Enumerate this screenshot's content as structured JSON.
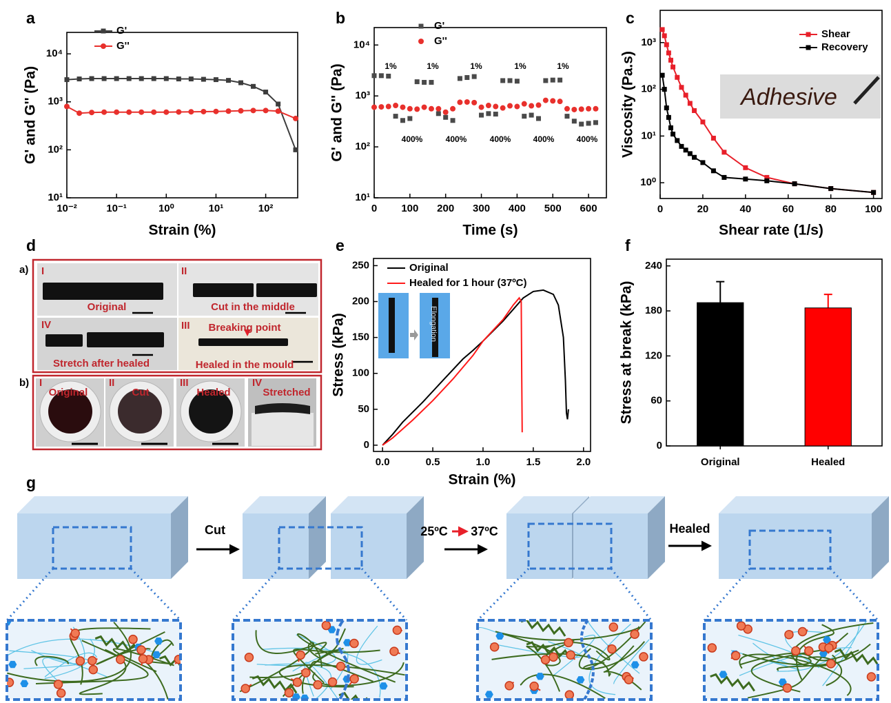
{
  "chart_data": [
    {
      "type": "line",
      "label": "a",
      "xlabel": "Strain (%)",
      "ylabel": "G' and G'' (Pa)",
      "xscale": "log",
      "yscale": "log",
      "xlim": [
        0.01,
        440
      ],
      "ylim": [
        10,
        28000
      ],
      "xticks": [
        {
          "value": 0.01,
          "label": "10⁻²"
        },
        {
          "value": 0.1,
          "label": "10⁻¹"
        },
        {
          "value": 1,
          "label": "10⁰"
        },
        {
          "value": 10,
          "label": "10¹"
        },
        {
          "value": 100,
          "label": "10²"
        }
      ],
      "yticks": [
        {
          "value": 10,
          "label": "10¹"
        },
        {
          "value": 100,
          "label": "10²"
        },
        {
          "value": 1000,
          "label": "10³"
        },
        {
          "value": 10000,
          "label": "10⁴"
        }
      ],
      "legend": "upper left",
      "x": [
        0.01,
        0.0178,
        0.0316,
        0.0562,
        0.1,
        0.178,
        0.316,
        0.562,
        1,
        1.78,
        3.16,
        5.62,
        10,
        17.8,
        31.6,
        56.2,
        100,
        178,
        400
      ],
      "series": [
        {
          "name": "G'",
          "color": "#3d3d3d",
          "marker": "square",
          "values": [
            2900,
            3000,
            3050,
            3050,
            3050,
            3050,
            3050,
            3050,
            3050,
            3000,
            3000,
            2950,
            2900,
            2800,
            2500,
            2100,
            1600,
            900,
            100
          ]
        },
        {
          "name": "G''",
          "color": "#e8302c",
          "marker": "circle",
          "values": [
            800,
            580,
            600,
            610,
            610,
            610,
            610,
            610,
            610,
            615,
            620,
            625,
            630,
            640,
            650,
            660,
            660,
            640,
            450
          ]
        }
      ]
    },
    {
      "type": "scatter",
      "label": "b",
      "xlabel": "Time (s)",
      "ylabel": "G' and G'' (Pa)",
      "yscale": "log",
      "xlim": [
        0,
        650
      ],
      "ylim": [
        10,
        22000
      ],
      "xticks": [
        0,
        100,
        200,
        300,
        400,
        500,
        600
      ],
      "yticks": [
        {
          "value": 10,
          "label": "10¹"
        },
        {
          "value": 100,
          "label": "10²"
        },
        {
          "value": 1000,
          "label": "10³"
        },
        {
          "value": 10000,
          "label": "10⁴"
        }
      ],
      "legend": "upper left",
      "annotations": [
        "1%",
        "1%",
        "1%",
        "1%",
        "1%",
        "400%",
        "400%",
        "400%",
        "400%",
        "400%"
      ],
      "x": [
        0,
        20,
        40,
        60,
        80,
        100,
        120,
        140,
        160,
        180,
        200,
        220,
        240,
        260,
        280,
        300,
        320,
        340,
        360,
        380,
        400,
        420,
        440,
        460,
        480,
        500,
        520,
        540,
        560,
        580,
        600,
        620
      ],
      "series": [
        {
          "name": "G'",
          "color": "#4a4a4a",
          "marker": "square",
          "values": [
            2500,
            2500,
            2450,
            400,
            330,
            360,
            1900,
            1850,
            1850,
            450,
            380,
            330,
            2200,
            2300,
            2400,
            420,
            450,
            440,
            2000,
            2000,
            1950,
            400,
            420,
            360,
            2000,
            2050,
            2050,
            400,
            320,
            280,
            290,
            300
          ]
        },
        {
          "name": "G''",
          "color": "#e8302c",
          "marker": "circle",
          "values": [
            600,
            610,
            620,
            650,
            600,
            560,
            550,
            600,
            560,
            560,
            480,
            560,
            750,
            760,
            740,
            600,
            650,
            620,
            580,
            640,
            620,
            700,
            640,
            660,
            820,
            800,
            780,
            560,
            540,
            550,
            560,
            560
          ]
        }
      ]
    },
    {
      "type": "line",
      "label": "c",
      "xlabel": "Shear rate (1/s)",
      "ylabel": "Viscosity (Pa.s)",
      "yscale": "log",
      "xlim": [
        0,
        104
      ],
      "ylim": [
        0.46,
        4900
      ],
      "xticks": [
        0,
        20,
        40,
        60,
        80,
        100
      ],
      "yticks": [
        {
          "value": 1,
          "label": "10⁰"
        },
        {
          "value": 10,
          "label": "10¹"
        },
        {
          "value": 100,
          "label": "10²"
        },
        {
          "value": 1000,
          "label": "10³"
        }
      ],
      "legend": "upper right",
      "inset_text": "Adhesive",
      "x": [
        1,
        2,
        3,
        4,
        5,
        6,
        8,
        10,
        12,
        14,
        16,
        20,
        25,
        30,
        40,
        50,
        63,
        80,
        100
      ],
      "series": [
        {
          "name": "Shear",
          "color": "#e8202a",
          "marker": "square",
          "values": [
            1900,
            1400,
            900,
            600,
            420,
            300,
            180,
            110,
            75,
            50,
            35,
            20,
            9,
            4.5,
            2.1,
            1.3,
            0.95,
            0.75,
            0.62
          ]
        },
        {
          "name": "Recovery",
          "color": "#000000",
          "marker": "square",
          "values": [
            200,
            100,
            40,
            25,
            15,
            11,
            8,
            6,
            5,
            4.2,
            3.5,
            2.7,
            1.8,
            1.3,
            1.2,
            1.1,
            0.95,
            0.75,
            0.62
          ]
        }
      ]
    },
    {
      "type": "line",
      "label": "e",
      "xlabel": "Strain (%)",
      "ylabel": "Stress (kPa)",
      "xlim": [
        -0.09,
        2.07
      ],
      "ylim": [
        -8.7,
        260
      ],
      "xticks": [
        {
          "value": 0,
          "label": "0.0"
        },
        0.5,
        {
          "value": 1,
          "label": "1.0"
        },
        1.5,
        {
          "value": 2,
          "label": "2.0"
        }
      ],
      "yticks": [
        0,
        50,
        100,
        150,
        200,
        250
      ],
      "legend": "upper left",
      "inset_text": "Elongation",
      "series": [
        {
          "name": "Original",
          "color": "#000000",
          "marker": "none",
          "x": [
            0,
            0.1,
            0.2,
            0.4,
            0.6,
            0.8,
            0.9,
            1.0,
            1.2,
            1.4,
            1.5,
            1.6,
            1.7,
            1.75,
            1.8,
            1.82,
            1.83,
            1.84,
            1.85
          ],
          "values": [
            0,
            15,
            32,
            60,
            90,
            120,
            132,
            145,
            173,
            205,
            214,
            216,
            210,
            195,
            150,
            90,
            45,
            36,
            50
          ]
        },
        {
          "name": "Healed for 1 hour (37ºC)",
          "color": "#ff1a1a",
          "marker": "none",
          "x": [
            0,
            0.1,
            0.3,
            0.5,
            0.7,
            0.9,
            1.0,
            1.1,
            1.2,
            1.3,
            1.36,
            1.38,
            1.385,
            1.39
          ],
          "values": [
            0,
            10,
            35,
            62,
            92,
            125,
            145,
            160,
            175,
            195,
            205,
            200,
            100,
            18
          ]
        }
      ]
    },
    {
      "type": "bar",
      "label": "f",
      "ylabel": "Stress at break (kPa)",
      "categories": [
        "Original",
        "Healed"
      ],
      "values": [
        191,
        184
      ],
      "errors": [
        28,
        18
      ],
      "colors": [
        "#000000",
        "#ff0000"
      ],
      "ylim": [
        0,
        249
      ],
      "yticks": [
        0,
        60,
        120,
        180,
        240
      ]
    }
  ],
  "photos": {
    "label": "d",
    "a_label": "a)",
    "b_label": "b)",
    "a": [
      {
        "numeral": "I",
        "caption": "Original"
      },
      {
        "numeral": "II",
        "caption": "Cut in the middle"
      },
      {
        "numeral": "IV",
        "caption": "Stretch after healed"
      },
      {
        "numeral": "III",
        "caption": "Healed in the mould",
        "note": "Breaking point"
      }
    ],
    "b": [
      {
        "numeral": "I",
        "caption": "Original"
      },
      {
        "numeral": "II",
        "caption": "Cut"
      },
      {
        "numeral": "III",
        "caption": "Healed"
      },
      {
        "numeral": "IV",
        "caption": "Stretched"
      }
    ]
  },
  "diagram": {
    "label": "g",
    "steps": [
      "Cut",
      "Healed"
    ],
    "temperature": {
      "from": "25ºC",
      "to": "37ºC"
    }
  }
}
